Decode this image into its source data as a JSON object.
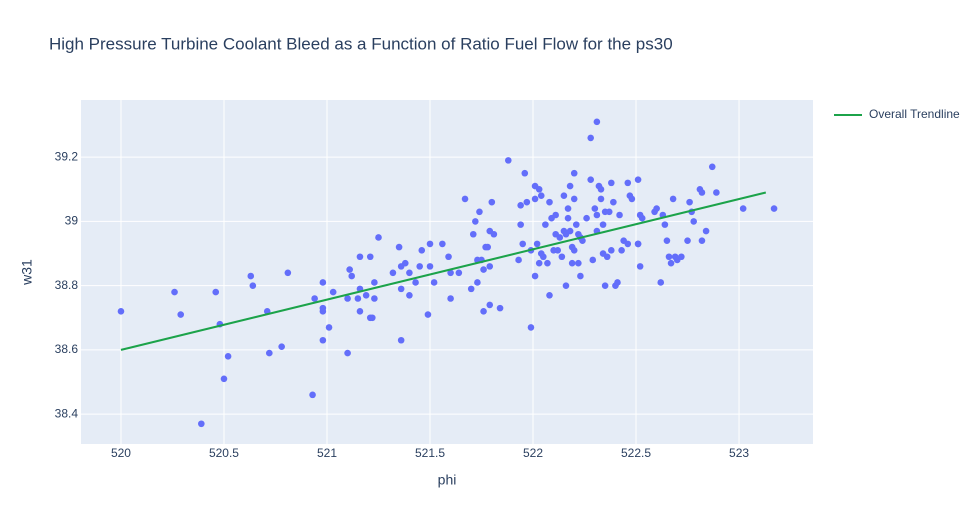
{
  "chart_data": {
    "type": "scatter",
    "title": "High Pressure Turbine Coolant Bleed as a Function of Ratio Fuel Flow for the ps30",
    "x_label": "phi",
    "y_label": "w31",
    "xlim": [
      519.806,
      523.359
    ],
    "ylim": [
      38.307,
      39.378
    ],
    "xticks": [
      520,
      520.5,
      521,
      521.5,
      522,
      522.5,
      523
    ],
    "yticks": [
      38.4,
      38.6,
      38.8,
      39,
      39.2
    ],
    "grid": true,
    "legend": "right",
    "background": "#e5ecf6",
    "series": [
      {
        "type": "scatter",
        "color": "#636efa",
        "x": [
          520.0,
          520.26,
          520.29,
          520.39,
          520.46,
          520.48,
          520.5,
          520.52,
          520.63,
          520.64,
          520.71,
          520.72,
          520.78,
          520.81,
          520.93,
          520.94,
          520.98,
          520.98,
          520.98,
          520.98,
          521.01,
          521.03,
          521.1,
          521.1,
          521.11,
          521.12,
          521.15,
          521.16,
          521.16,
          521.16,
          521.19,
          521.21,
          521.21,
          521.22,
          521.23,
          521.23,
          521.25,
          521.32,
          521.35,
          521.36,
          521.36,
          521.36,
          521.38,
          521.4,
          521.4,
          521.43,
          521.45,
          521.46,
          521.49,
          521.5,
          521.5,
          521.52,
          521.56,
          521.59,
          521.6,
          521.6,
          521.64,
          521.67,
          521.71,
          521.7,
          521.72,
          521.73,
          521.73,
          521.74,
          521.75,
          521.76,
          521.76,
          521.77,
          521.78,
          521.79,
          521.79,
          521.79,
          521.8,
          521.81,
          521.84,
          521.88,
          521.93,
          521.94,
          521.94,
          521.95,
          521.96,
          521.97,
          521.99,
          521.99,
          522.01,
          522.01,
          522.01,
          522.02,
          522.03,
          522.03,
          522.04,
          522.04,
          522.05,
          522.06,
          522.07,
          522.08,
          522.08,
          522.09,
          522.1,
          522.11,
          522.11,
          522.12,
          522.13,
          522.14,
          522.15,
          522.15,
          522.16,
          522.16,
          522.17,
          522.17,
          522.18,
          522.18,
          522.19,
          522.19,
          522.2,
          522.2,
          522.2,
          522.21,
          522.22,
          522.22,
          522.23,
          522.23,
          522.24,
          522.26,
          522.28,
          522.28,
          522.29,
          522.3,
          522.31,
          522.31,
          522.31,
          522.32,
          522.33,
          522.33,
          522.34,
          522.34,
          522.35,
          522.35,
          522.36,
          522.37,
          522.38,
          522.38,
          522.39,
          522.4,
          522.41,
          522.42,
          522.43,
          522.44,
          522.46,
          522.46,
          522.47,
          522.48,
          522.51,
          522.51,
          522.51,
          522.52,
          522.52,
          522.53,
          522.59,
          522.6,
          522.62,
          522.63,
          522.64,
          522.65,
          522.66,
          522.67,
          522.68,
          522.69,
          522.7,
          522.72,
          522.75,
          522.76,
          522.77,
          522.78,
          522.81,
          522.82,
          522.82,
          522.84,
          522.87,
          522.89,
          523.02,
          523.17
        ],
        "y": [
          38.72,
          38.78,
          38.71,
          38.37,
          38.78,
          38.68,
          38.51,
          38.58,
          38.83,
          38.8,
          38.72,
          38.59,
          38.61,
          38.84,
          38.46,
          38.76,
          38.72,
          38.81,
          38.73,
          38.63,
          38.67,
          38.78,
          38.76,
          38.59,
          38.85,
          38.83,
          38.76,
          38.89,
          38.79,
          38.72,
          38.77,
          38.89,
          38.7,
          38.7,
          38.81,
          38.76,
          38.95,
          38.84,
          38.92,
          38.86,
          38.79,
          38.63,
          38.87,
          38.84,
          38.77,
          38.81,
          38.86,
          38.91,
          38.71,
          38.86,
          38.93,
          38.81,
          38.93,
          38.89,
          38.84,
          38.76,
          38.84,
          39.07,
          38.96,
          38.79,
          39.0,
          38.88,
          38.81,
          39.03,
          38.88,
          38.72,
          38.85,
          38.92,
          38.92,
          38.86,
          38.74,
          38.97,
          39.06,
          38.96,
          38.73,
          39.19,
          38.88,
          39.05,
          38.99,
          38.93,
          39.15,
          39.06,
          38.67,
          38.91,
          39.11,
          39.07,
          38.83,
          38.93,
          39.1,
          38.87,
          38.9,
          39.08,
          38.89,
          38.99,
          38.87,
          39.06,
          38.77,
          39.01,
          38.91,
          38.96,
          39.02,
          38.91,
          38.95,
          38.89,
          39.08,
          38.97,
          38.8,
          38.96,
          39.01,
          39.04,
          39.11,
          38.97,
          38.92,
          38.87,
          39.07,
          39.15,
          38.91,
          38.99,
          38.96,
          38.87,
          38.95,
          38.83,
          38.94,
          39.01,
          39.13,
          39.26,
          38.88,
          39.04,
          39.31,
          39.02,
          38.97,
          39.11,
          39.1,
          39.07,
          38.99,
          38.9,
          39.03,
          38.8,
          38.89,
          39.03,
          38.91,
          39.12,
          39.06,
          38.8,
          38.81,
          39.02,
          38.91,
          38.94,
          39.12,
          38.93,
          39.08,
          39.07,
          38.93,
          39.13,
          38.93,
          38.86,
          39.02,
          39.01,
          39.03,
          39.04,
          38.81,
          39.02,
          38.99,
          38.94,
          38.89,
          38.87,
          39.07,
          38.89,
          38.88,
          38.89,
          38.94,
          39.06,
          39.03,
          39.0,
          39.1,
          38.94,
          39.09,
          38.97,
          39.17,
          39.09,
          39.04,
          39.04
        ]
      },
      {
        "type": "line",
        "name": "Overall Trendline",
        "color": "#1ca34a",
        "x": [
          520,
          523.13
        ],
        "y": [
          38.6,
          39.09
        ]
      }
    ]
  }
}
